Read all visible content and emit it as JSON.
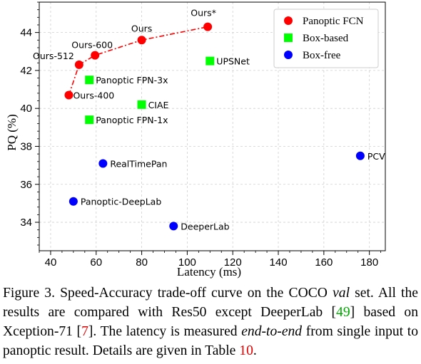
{
  "chart_data": {
    "type": "scatter",
    "xlabel": "Latency (ms)",
    "ylabel": "PQ (%)",
    "xlim": [
      35,
      187
    ],
    "ylim": [
      32.5,
      45.6
    ],
    "x_ticks": [
      40,
      60,
      80,
      100,
      120,
      140,
      160,
      180
    ],
    "y_ticks": [
      34,
      36,
      38,
      40,
      42,
      44
    ],
    "grid": true,
    "legend_position": "top-right",
    "series": [
      {
        "name": "Panoptic FCN",
        "color": "#ff0000",
        "marker": "circle",
        "connected": true,
        "points": [
          {
            "label": "Ours-400",
            "x": 48,
            "y": 40.7
          },
          {
            "label": "Ours-512",
            "x": 52.5,
            "y": 42.3
          },
          {
            "label": "Ours-600",
            "x": 59.5,
            "y": 42.8
          },
          {
            "label": "Ours",
            "x": 80,
            "y": 43.6
          },
          {
            "label": "Ours*",
            "x": 109,
            "y": 44.3
          }
        ]
      },
      {
        "name": "Box-based",
        "color": "#00ff00",
        "marker": "square",
        "connected": false,
        "points": [
          {
            "label": "UPSNet",
            "x": 110,
            "y": 42.5
          },
          {
            "label": "Panoptic FPN-3x",
            "x": 57,
            "y": 41.5
          },
          {
            "label": "CIAE",
            "x": 80,
            "y": 40.2
          },
          {
            "label": "Panoptic FPN-1x",
            "x": 57,
            "y": 39.4
          }
        ]
      },
      {
        "name": "Box-free",
        "color": "#0000ff",
        "marker": "circle",
        "connected": false,
        "points": [
          {
            "label": "PCV",
            "x": 176,
            "y": 37.5
          },
          {
            "label": "RealTimePan",
            "x": 63,
            "y": 37.1
          },
          {
            "label": "Panoptic-DeepLab",
            "x": 50,
            "y": 35.1
          },
          {
            "label": "DeeperLab",
            "x": 94,
            "y": 33.8
          }
        ]
      }
    ]
  },
  "caption": {
    "prefix": "Figure 3. Speed-Accuracy trade-off curve on the COCO ",
    "italic_val": "val",
    "part2": " set. All the results are compared with Res50 except DeeperLab [",
    "ref1": "49",
    "part3": "] based on Xception-71 [",
    "ref2": "7",
    "part4": "]. The latency is measured ",
    "italic_e2e": "end-to-end",
    "part5": " from single input to panoptic result. Details are given in Table ",
    "ref3": "10",
    "part6": "."
  }
}
